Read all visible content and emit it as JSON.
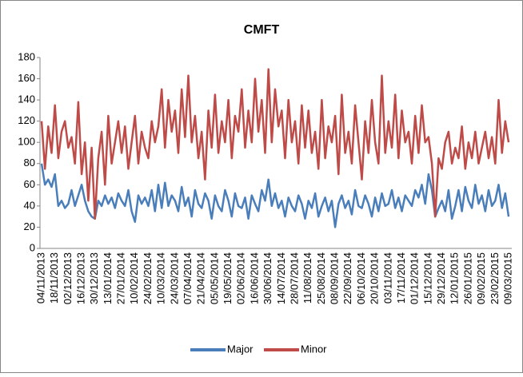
{
  "chart_data": {
    "type": "line",
    "title": "CMFT",
    "categories": [
      "04/11/2013",
      null,
      null,
      null,
      "18/11/2013",
      null,
      null,
      null,
      "02/12/2013",
      null,
      null,
      null,
      "16/12/2013",
      null,
      null,
      null,
      "30/12/2013",
      null,
      null,
      null,
      "13/01/2014",
      null,
      null,
      null,
      "27/01/2014",
      null,
      null,
      null,
      "10/02/2014",
      null,
      null,
      null,
      "24/02/2014",
      null,
      null,
      null,
      "10/03/2014",
      null,
      null,
      null,
      "24/03/2014",
      null,
      null,
      null,
      "07/04/2014",
      null,
      null,
      null,
      "21/04/2014",
      null,
      null,
      null,
      "05/05/2014",
      null,
      null,
      null,
      "19/05/2014",
      null,
      null,
      null,
      "02/06/2014",
      null,
      null,
      null,
      "16/06/2014",
      null,
      null,
      null,
      "30/06/2014",
      null,
      null,
      null,
      "14/07/2014",
      null,
      null,
      null,
      "28/07/2014",
      null,
      null,
      null,
      "11/08/2014",
      null,
      null,
      null,
      "25/08/2014",
      null,
      null,
      null,
      "08/09/2014",
      null,
      null,
      null,
      "22/09/2014",
      null,
      null,
      null,
      "06/10/2014",
      null,
      null,
      null,
      "20/10/2014",
      null,
      null,
      null,
      "03/11/2014",
      null,
      null,
      null,
      "17/11/2014",
      null,
      null,
      null,
      "01/12/2014",
      null,
      null,
      null,
      "15/12/2014",
      null,
      null,
      null,
      "29/12/2014",
      null,
      null,
      null,
      "12/01/2015",
      null,
      null,
      null,
      "26/01/2015",
      null,
      null,
      null,
      "09/02/2015",
      null,
      null,
      null,
      "23/02/2015",
      null,
      null,
      null,
      "09/03/2015"
    ],
    "series": [
      {
        "name": "Major",
        "color": "#4a7ebb",
        "values": [
          80,
          60,
          65,
          58,
          70,
          40,
          45,
          38,
          42,
          55,
          40,
          50,
          60,
          45,
          35,
          30,
          28,
          45,
          40,
          50,
          42,
          48,
          38,
          52,
          45,
          40,
          55,
          35,
          25,
          50,
          42,
          48,
          40,
          55,
          35,
          60,
          38,
          62,
          40,
          50,
          45,
          35,
          58,
          40,
          48,
          30,
          55,
          42,
          38,
          52,
          45,
          28,
          50,
          40,
          35,
          55,
          45,
          30,
          52,
          40,
          38,
          48,
          28,
          50,
          42,
          35,
          55,
          45,
          65,
          40,
          52,
          38,
          45,
          30,
          48,
          40,
          35,
          50,
          42,
          28,
          45,
          38,
          52,
          30,
          40,
          48,
          35,
          45,
          20,
          42,
          50,
          38,
          45,
          32,
          55,
          40,
          38,
          50,
          42,
          30,
          48,
          35,
          52,
          40,
          42,
          55,
          38,
          48,
          35,
          50,
          45,
          40,
          55,
          48,
          60,
          42,
          70,
          55,
          30,
          38,
          45,
          35,
          55,
          28,
          40,
          55,
          35,
          58,
          45,
          38,
          60,
          42,
          50,
          35,
          55,
          40,
          45,
          60,
          38,
          52,
          30
        ]
      },
      {
        "name": "Minor",
        "color": "#be4b48",
        "values": [
          120,
          75,
          115,
          90,
          135,
          85,
          110,
          120,
          95,
          105,
          80,
          138,
          70,
          100,
          45,
          95,
          28,
          85,
          110,
          60,
          125,
          80,
          100,
          120,
          90,
          115,
          75,
          100,
          125,
          80,
          110,
          95,
          85,
          120,
          100,
          115,
          150,
          95,
          140,
          110,
          130,
          90,
          150,
          105,
          163,
          100,
          125,
          85,
          110,
          65,
          130,
          95,
          145,
          90,
          120,
          100,
          140,
          85,
          125,
          110,
          150,
          95,
          130,
          100,
          160,
          110,
          140,
          90,
          169,
          100,
          150,
          115,
          130,
          85,
          140,
          100,
          120,
          80,
          135,
          95,
          130,
          90,
          110,
          75,
          140,
          85,
          115,
          100,
          125,
          70,
          145,
          90,
          110,
          80,
          135,
          100,
          65,
          120,
          90,
          140,
          100,
          80,
          163,
          90,
          120,
          95,
          145,
          85,
          130,
          100,
          110,
          80,
          125,
          90,
          135,
          100,
          105,
          80,
          30,
          85,
          75,
          100,
          110,
          80,
          95,
          85,
          115,
          75,
          100,
          85,
          110,
          80,
          95,
          110,
          85,
          105,
          80,
          140,
          90,
          120,
          100
        ]
      }
    ],
    "ylim": [
      0,
      180
    ],
    "yticks": [
      0,
      20,
      40,
      60,
      80,
      100,
      120,
      140,
      160,
      180
    ],
    "legend": "bottom"
  }
}
